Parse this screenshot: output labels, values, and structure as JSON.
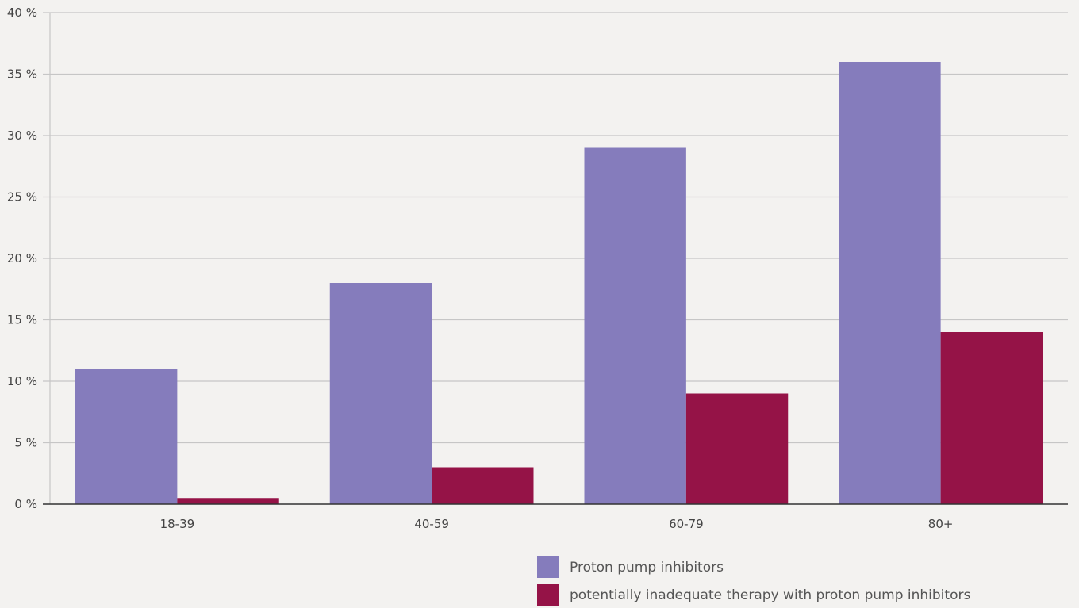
{
  "chart_data": {
    "type": "bar",
    "title": "",
    "xlabel": "",
    "ylabel": "",
    "categories": [
      "18-39",
      "40-59",
      "60-79",
      "80+"
    ],
    "series": [
      {
        "name": "Proton pump inhibitors",
        "values": [
          11,
          18,
          29,
          36
        ],
        "color": "#857cbc"
      },
      {
        "name": "potentially inadequate therapy with proton pump inhibitors",
        "values": [
          0.5,
          3,
          9,
          14
        ],
        "color": "#951347"
      }
    ],
    "ylim": [
      0,
      40
    ],
    "yticks": [
      0,
      5,
      10,
      15,
      20,
      25,
      30,
      35,
      40
    ],
    "ytick_labels": [
      "0 %",
      "5 %",
      "10 %",
      "15 %",
      "20 %",
      "25 %",
      "30 %",
      "35 %",
      "40 %"
    ],
    "grid": true,
    "legend_position": "bottom-right"
  }
}
